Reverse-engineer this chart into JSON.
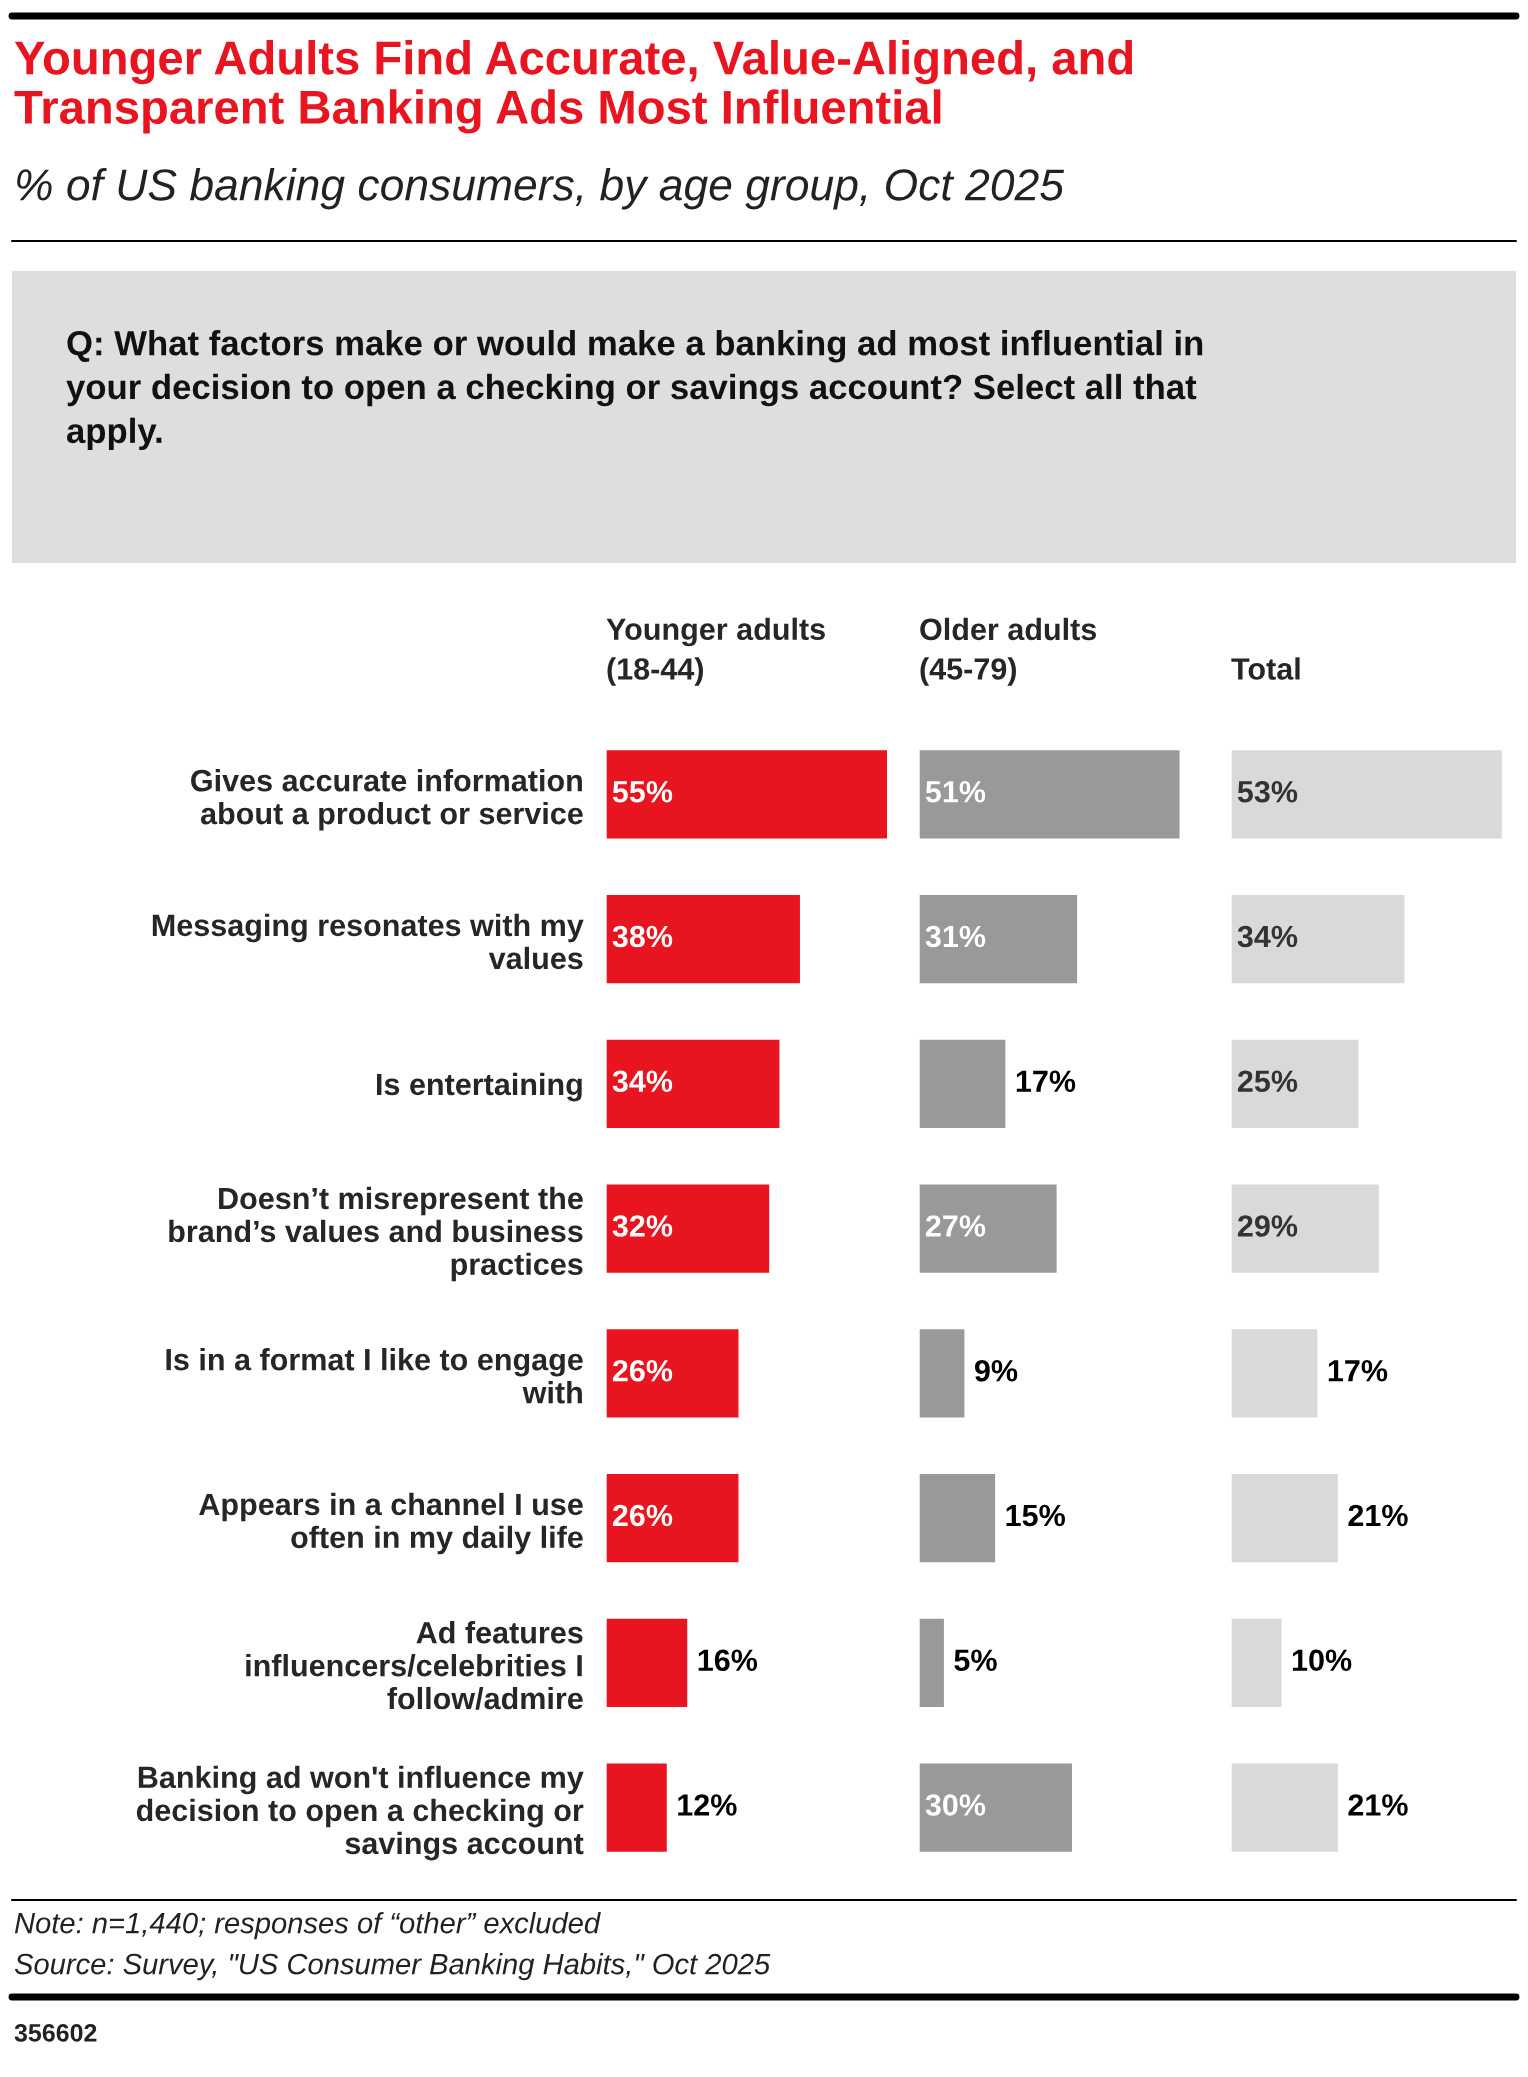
{
  "chart_data": [
    {
      "type": "bar",
      "orientation": "horizontal",
      "title": "Younger Adults Find Accurate, Value-Aligned, and\nTransparent Banking Ads Most Influential",
      "subtitle": "% of US banking consumers, by age group, Oct 2025",
      "categories": [
        "Gives accurate information\nabout a product or service",
        "Messaging resonates with my\nvalues",
        "Is entertaining",
        "Doesn’t misrepresent the\nbrand’s values and business\npractices",
        "Is in a format I like to engage\nwith",
        "Appears in a channel I use\noften in my daily life",
        "Ad features\ninfluencers/celebrities I\nfollow/admire",
        "Banking ad won't influence my\ndecision to open a checking or\nsavings account"
      ],
      "series": [
        {
          "name": "Younger adults\n(18-44)",
          "color": "#e8141f",
          "values": [
            55,
            38,
            34,
            32,
            26,
            26,
            16,
            12
          ],
          "value_labels": [
            "55%",
            "38%",
            "34%",
            "32%",
            "26%",
            "26%",
            "16%",
            "12%"
          ]
        }
      ],
      "tick_labels": "y",
      "annotations": [
        "Q: What factors make or would make a banking ad most influential in\nyour decision to open a checking or savings account? Select all that\napply.",
        "Note: n=1,440; responses of “other” excluded",
        "Source: Survey, \"US Consumer Banking Habits,\" Oct 2025",
        "356602"
      ]
    },
    {
      "type": "bar",
      "orientation": "horizontal",
      "categories": [
        null,
        null,
        null,
        null,
        null,
        null,
        null,
        null
      ],
      "series": [
        {
          "name": "Older adults\n(45-79)",
          "color": "#999999",
          "values": [
            51,
            31,
            17,
            27,
            9,
            15,
            5,
            30
          ],
          "value_labels": [
            "51%",
            "31%",
            "17%",
            "27%",
            "9%",
            "15%",
            "5%",
            "30%"
          ]
        }
      ],
      "tick_labels": false
    },
    {
      "type": "bar",
      "orientation": "horizontal",
      "categories": [
        null,
        null,
        null,
        null,
        null,
        null,
        null,
        null
      ],
      "series": [
        {
          "name": "Total",
          "color": "#d9d9d9",
          "values": [
            53,
            34,
            25,
            29,
            17,
            21,
            10,
            21
          ],
          "value_labels": [
            "53%",
            "34%",
            "25%",
            "29%",
            "17%",
            "21%",
            "10%",
            "21%"
          ]
        }
      ],
      "tick_labels": false
    }
  ]
}
